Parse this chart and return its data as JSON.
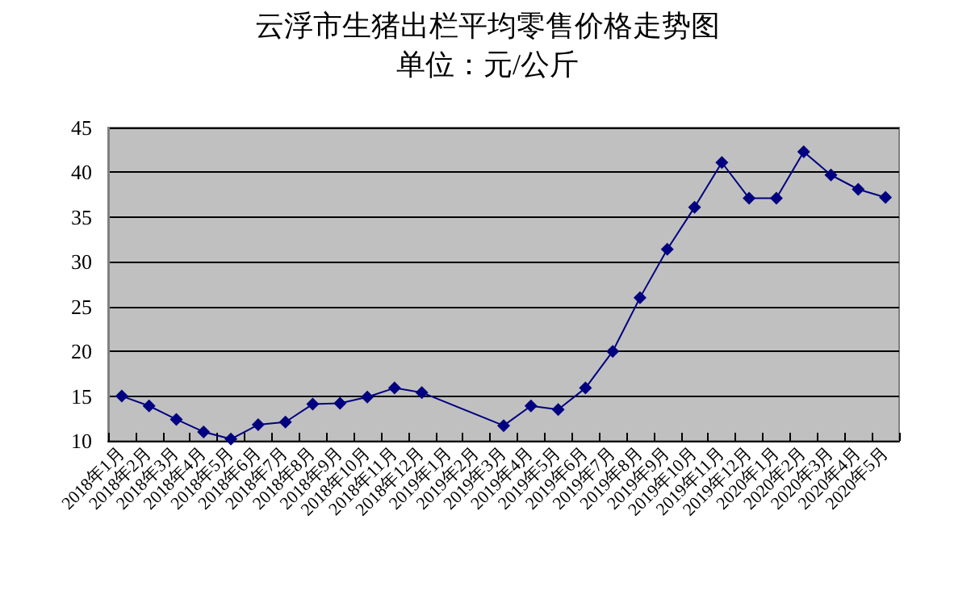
{
  "chart_data": {
    "type": "line",
    "title": "云浮市生猪出栏平均零售价格走势图",
    "subtitle": "单位：元/公斤",
    "categories": [
      "2018年1月",
      "2018年2月",
      "2018年3月",
      "2018年4月",
      "2018年5月",
      "2018年6月",
      "2018年7月",
      "2018年8月",
      "2018年9月",
      "2018年10月",
      "2018年11月",
      "2018年12月",
      "2019年1月",
      "2019年2月",
      "2019年3月",
      "2019年4月",
      "2019年5月",
      "2019年6月",
      "2019年7月",
      "2019年8月",
      "2019年9月",
      "2019年10月",
      "2019年11月",
      "2019年12月",
      "2020年1月",
      "2020年2月",
      "2020年3月",
      "2020年4月",
      "2020年5月"
    ],
    "series": [
      {
        "color": "#000080",
        "values": [
          15.0,
          13.9,
          12.4,
          11.0,
          10.2,
          11.8,
          12.1,
          14.1,
          14.2,
          14.9,
          15.9,
          15.4,
          null,
          null,
          11.7,
          13.9,
          13.5,
          15.9,
          20.0,
          26.0,
          31.4,
          36.1,
          41.1,
          37.1,
          37.1,
          42.3,
          39.7,
          38.1,
          37.2
        ]
      }
    ],
    "ylim": [
      10,
      45
    ],
    "yticks": [
      10,
      15,
      20,
      25,
      30,
      35,
      40,
      45
    ],
    "grid": "y",
    "marker": "diamond",
    "line_style": "solid"
  }
}
